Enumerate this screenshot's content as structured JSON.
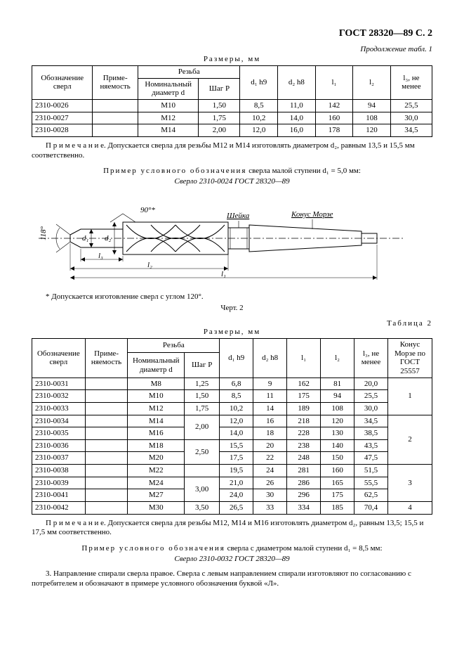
{
  "header": "ГОСТ 28320—89 С. 2",
  "continuation": "Продолжение табл. 1",
  "sizes_label": "Размеры, мм",
  "table1": {
    "h": {
      "c0": "Обозначение сверл",
      "c1": "Приме-\nняемость",
      "thread": "Резьба",
      "c2a": "Номинальный диаметр d",
      "c2b": "Шаг P",
      "c3": "d₁\nh9",
      "c4": "d₂\nh8",
      "c5": "l₁",
      "c6": "l₂",
      "c7": "l₃,\nне менее"
    },
    "rows": [
      [
        "2310-0026",
        "",
        "M10",
        "1,50",
        "8,5",
        "11,0",
        "142",
        "94",
        "25,5"
      ],
      [
        "2310-0027",
        "",
        "M12",
        "1,75",
        "10,2",
        "14,0",
        "160",
        "108",
        "30,0"
      ],
      [
        "2310-0028",
        "",
        "M14",
        "2,00",
        "12,0",
        "16,0",
        "178",
        "120",
        "34,5"
      ]
    ]
  },
  "note1": "П р и м е ч а н и е. Допускается сверла для резьбы М12 и М14 изготовлять диаметром d₂, равным 13,5 и 15,5 мм соответственно.",
  "example1": {
    "line1_a": "Пример условного обозначения",
    "line1_b": " сверла  малой ступени d₁ = 5,0 мм:",
    "line2": "Сверло 2310-0024 ГОСТ 28320—89"
  },
  "figure": {
    "angle_top": "90°*",
    "angle_left": "118°",
    "neck": "Шейка",
    "morse": "Конус Морзе",
    "d1": "d₁",
    "d2": "d₂",
    "l3": "l₃",
    "l2": "l₂",
    "l1": "l₁"
  },
  "figure_note": "* Допускается изготовление сверл с углом 120°.",
  "figure_label": "Черт. 2",
  "table2_label": "Таблица 2",
  "table2": {
    "h": {
      "c0": "Обозначение сверл",
      "c1": "Приме-\nняемость",
      "thread": "Резьба",
      "c2a": "Номинальный диаметр d",
      "c2b": "Шаг P",
      "c3": "d₁\nh9",
      "c4": "d₂\nh8",
      "c5": "l₁",
      "c6": "l₂",
      "c7": "l₃,\nне\nменее",
      "c8": "Конус Морзе по ГОСТ 25557"
    },
    "rows": [
      [
        "2310-0031",
        "",
        "M8",
        "1,25",
        "6,8",
        "9",
        "162",
        "81",
        "20,0"
      ],
      [
        "2310-0032",
        "",
        "M10",
        "1,50",
        "8,5",
        "11",
        "175",
        "94",
        "25,5"
      ],
      [
        "2310-0033",
        "",
        "M12",
        "1,75",
        "10,2",
        "14",
        "189",
        "108",
        "30,0"
      ],
      [
        "2310-0034",
        "",
        "M14",
        "",
        "12,0",
        "16",
        "218",
        "120",
        "34,5"
      ],
      [
        "2310-0035",
        "",
        "M16",
        "",
        "14,0",
        "18",
        "228",
        "130",
        "38,5"
      ],
      [
        "2310-0036",
        "",
        "M18",
        "",
        "15,5",
        "20",
        "238",
        "140",
        "43,5"
      ],
      [
        "2310-0037",
        "",
        "M20",
        "",
        "17,5",
        "22",
        "248",
        "150",
        "47,5"
      ],
      [
        "2310-0038",
        "",
        "M22",
        "",
        "19,5",
        "24",
        "281",
        "160",
        "51,5"
      ],
      [
        "2310-0039",
        "",
        "M24",
        "",
        "21,0",
        "26",
        "286",
        "165",
        "55,5"
      ],
      [
        "2310-0041",
        "",
        "M27",
        "",
        "24,0",
        "30",
        "296",
        "175",
        "62,5"
      ],
      [
        "2310-0042",
        "",
        "M30",
        "3,50",
        "26,5",
        "33",
        "334",
        "185",
        "70,4"
      ]
    ],
    "pitch_200": "2,00",
    "pitch_250": "2,50",
    "pitch_300": "3,00",
    "morse1": "1",
    "morse2": "2",
    "morse3": "3",
    "morse4": "4"
  },
  "note2": "П р и м е ч а н и е. Допускается сверла для резьбы М12,  М14 и М16 изготовлять диаметром d₂, равным 13,5;  15,5 и 17,5  мм соответственно.",
  "example2": {
    "line1_a": "Пример условного обозначения",
    "line1_b": " сверла  с диаметром малой ступени d₁ = 8,5 мм:",
    "line2": "Сверло 2310-0032 ГОСТ 28320—89"
  },
  "para3": "3. Направление спирали сверла правое. Сверла с левым направлением спирали изготовляют по согласованию с потребителем и обозначают в примере условного обозначения буквой «Л»."
}
